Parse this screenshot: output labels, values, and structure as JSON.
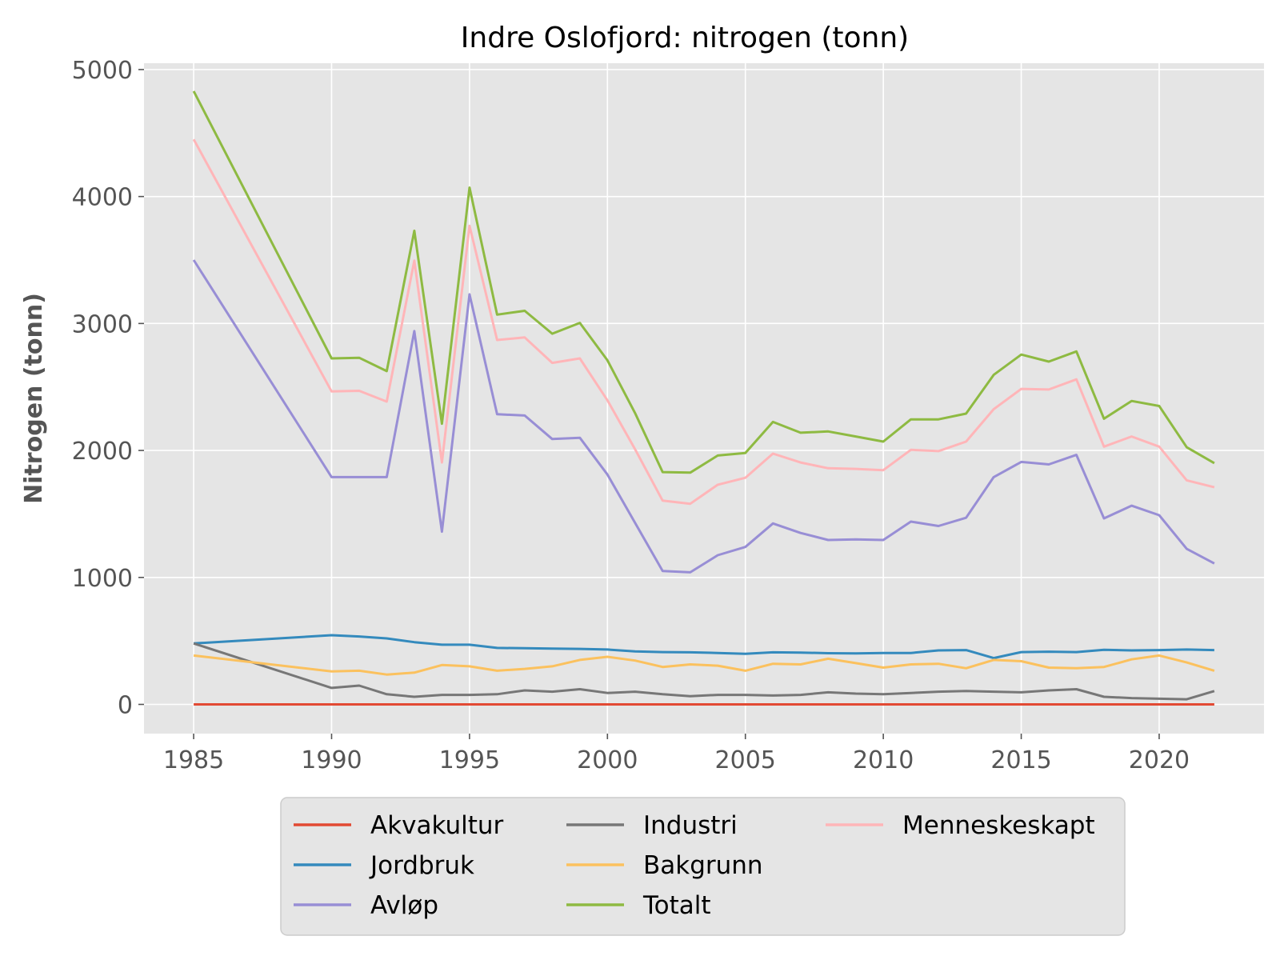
{
  "chart_data": {
    "type": "line",
    "title": "Indre Oslofjord: nitrogen (tonn)",
    "xlabel": "",
    "ylabel": "Nitrogen (tonn)",
    "xlim": [
      1983.2,
      2023.8
    ],
    "ylim": [
      -230,
      5050
    ],
    "xticks": [
      1985,
      1990,
      1995,
      2000,
      2005,
      2010,
      2015,
      2020
    ],
    "yticks": [
      0,
      1000,
      2000,
      3000,
      4000,
      5000
    ],
    "grid": true,
    "legend_position": "bottom",
    "x": [
      1985,
      1990,
      1991,
      1992,
      1993,
      1994,
      1995,
      1996,
      1997,
      1998,
      1999,
      2000,
      2001,
      2002,
      2003,
      2004,
      2005,
      2006,
      2007,
      2008,
      2009,
      2010,
      2011,
      2012,
      2013,
      2014,
      2015,
      2016,
      2017,
      2018,
      2019,
      2020,
      2021,
      2022
    ],
    "series": [
      {
        "name": "Akvakultur",
        "color": "#E24A33",
        "values": [
          0,
          0,
          0,
          0,
          0,
          0,
          0,
          0,
          0,
          0,
          0,
          0,
          0,
          0,
          0,
          0,
          0,
          0,
          0,
          0,
          0,
          0,
          0,
          0,
          0,
          0,
          0,
          0,
          0,
          0,
          0,
          0,
          0,
          0
        ]
      },
      {
        "name": "Jordbruk",
        "color": "#348ABD",
        "values": [
          480,
          545,
          535,
          520,
          490,
          470,
          470,
          445,
          442,
          440,
          437,
          432,
          418,
          412,
          410,
          405,
          398,
          410,
          408,
          403,
          402,
          405,
          405,
          425,
          428,
          365,
          412,
          415,
          412,
          430,
          425,
          428,
          432,
          428
        ]
      },
      {
        "name": "Avløp",
        "color": "#988ED5",
        "values": [
          3500,
          1790,
          1790,
          1790,
          2940,
          1360,
          3230,
          2285,
          2275,
          2090,
          2100,
          1810,
          1430,
          1050,
          1040,
          1175,
          1240,
          1425,
          1350,
          1295,
          1300,
          1295,
          1440,
          1405,
          1470,
          1790,
          1910,
          1890,
          1965,
          1465,
          1565,
          1490,
          1225,
          1110
        ]
      },
      {
        "name": "Industri",
        "color": "#777777",
        "values": [
          480,
          130,
          148,
          80,
          60,
          75,
          75,
          80,
          110,
          100,
          120,
          90,
          100,
          80,
          65,
          75,
          75,
          70,
          75,
          95,
          85,
          80,
          90,
          100,
          105,
          100,
          95,
          110,
          120,
          60,
          50,
          45,
          40,
          105
        ]
      },
      {
        "name": "Bakgrunn",
        "color": "#FBC15E",
        "values": [
          385,
          260,
          265,
          235,
          250,
          310,
          300,
          265,
          280,
          300,
          350,
          375,
          345,
          295,
          315,
          305,
          265,
          320,
          315,
          360,
          325,
          290,
          315,
          320,
          285,
          350,
          340,
          290,
          285,
          295,
          355,
          385,
          330,
          265
        ]
      },
      {
        "name": "Totalt",
        "color": "#8EBA42",
        "values": [
          4830,
          2725,
          2730,
          2625,
          3730,
          2210,
          4070,
          3070,
          3100,
          2920,
          3005,
          2710,
          2295,
          1830,
          1825,
          1960,
          1980,
          2225,
          2140,
          2150,
          2110,
          2070,
          2245,
          2245,
          2290,
          2595,
          2755,
          2700,
          2780,
          2250,
          2390,
          2350,
          2025,
          1900
        ]
      },
      {
        "name": "Menneskeskapt",
        "color": "#FFB5B8",
        "values": [
          4450,
          2465,
          2470,
          2385,
          3495,
          1905,
          3770,
          2870,
          2890,
          2690,
          2725,
          2395,
          2010,
          1605,
          1580,
          1730,
          1785,
          1975,
          1905,
          1860,
          1855,
          1845,
          2005,
          1995,
          2070,
          2325,
          2485,
          2480,
          2560,
          2030,
          2110,
          2030,
          1765,
          1710
        ]
      }
    ],
    "legend_order": [
      "Akvakultur",
      "Jordbruk",
      "Avløp",
      "Industri",
      "Bakgrunn",
      "Totalt",
      "Menneskeskapt"
    ],
    "colors": {
      "plot_background": "#E5E5E5",
      "grid": "#FFFFFF",
      "tick_label": "#555555"
    }
  }
}
